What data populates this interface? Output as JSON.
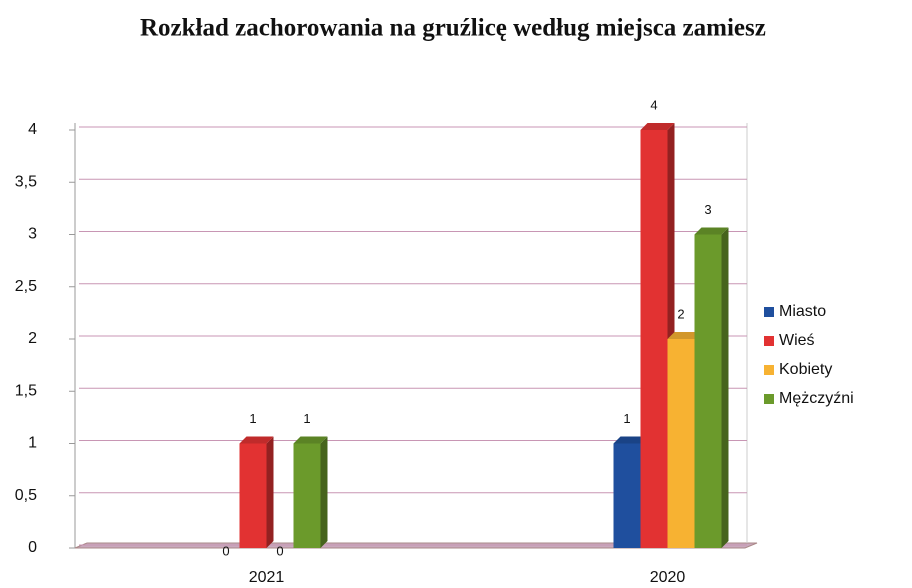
{
  "chart_data": {
    "type": "bar3d",
    "title": "Rozkład zachorowania na gruźlicę według miejsca zamiesz",
    "categories": [
      "2021",
      "2020"
    ],
    "series": [
      {
        "name": "Miasto",
        "color": "#1f4f9e",
        "values": [
          0,
          1
        ]
      },
      {
        "name": "Wieś",
        "color": "#e23232",
        "values": [
          1,
          4
        ]
      },
      {
        "name": "Kobiety",
        "color": "#f7b232",
        "values": [
          0,
          2
        ]
      },
      {
        "name": "Mężczyźni",
        "color": "#6b9a2b",
        "values": [
          1,
          3
        ]
      }
    ],
    "ylim": [
      0,
      4
    ],
    "yticks": [
      0,
      {
        "value": 0.5,
        "label": "0,5"
      },
      1,
      {
        "value": 1.5,
        "label": "1,5"
      },
      2,
      {
        "value": 2.5,
        "label": "2,5"
      },
      3,
      {
        "value": 3.5,
        "label": "3,5"
      },
      4
    ],
    "grid": true,
    "legend": "right",
    "data_labels": true
  }
}
